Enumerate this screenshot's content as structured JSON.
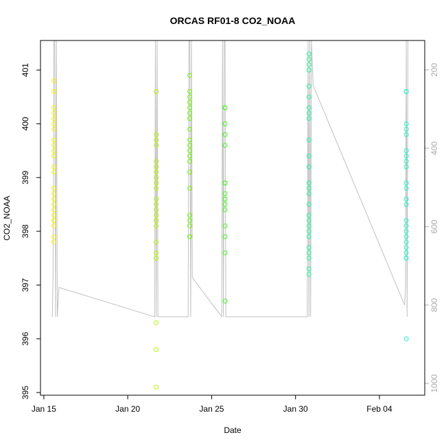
{
  "chart_data": {
    "type": "scatter",
    "title": "ORCAS RF01-8 CO2_NOAA",
    "xlabel": "Date",
    "ylabel": "CO2_NOAA",
    "x_tick_labels": [
      "Jan 15",
      "Jan 20",
      "Jan 25",
      "Jan 30",
      "Feb 04"
    ],
    "x_tick_values": [
      15,
      20,
      25,
      30,
      35
    ],
    "xlim": [
      14.8,
      37.7
    ],
    "ylim": [
      394.95,
      401.55
    ],
    "y_ticks": [
      395,
      396,
      397,
      398,
      399,
      400,
      401
    ],
    "y2_ticks": [
      200,
      400,
      600,
      800,
      1000
    ],
    "y2lim": [
      1030,
      125
    ],
    "grid": false,
    "colors": {
      "flight_palette": [
        "#f5f500",
        "#b5f500",
        "#6ef500",
        "#3ef51a",
        "#26f59a",
        "#1ff5c8"
      ],
      "secondary_line": "#c0c0c0",
      "secondary_axis": "#aaaaaa"
    },
    "series": [
      {
        "color": "#f5f500",
        "x": [
          15.6,
          15.6,
          15.6,
          15.6,
          15.6,
          15.6,
          15.6,
          15.6,
          15.6,
          15.6,
          15.6,
          15.6,
          15.6,
          15.6,
          15.6,
          15.6,
          15.6,
          15.6,
          15.6,
          15.6,
          15.6,
          15.6,
          15.6,
          15.6
        ],
        "y": [
          400.8,
          400.6,
          400.3,
          400.2,
          400.1,
          400.0,
          399.9,
          399.7,
          399.6,
          399.5,
          399.2,
          399.1,
          398.8,
          398.7,
          398.6,
          398.5,
          398.4,
          398.3,
          398.2,
          398.2,
          398.1,
          397.9,
          397.8,
          399.4
        ]
      },
      {
        "color": "#b5f500",
        "x": [
          21.7,
          21.7,
          21.7,
          21.7,
          21.7,
          21.7,
          21.7,
          21.7,
          21.7,
          21.7,
          21.7,
          21.7,
          21.7,
          21.7,
          21.7,
          21.7,
          21.7,
          21.7,
          21.7,
          21.7,
          21.7,
          21.7,
          21.7,
          21.7
        ],
        "y": [
          400.6,
          399.8,
          399.7,
          399.6,
          399.3,
          399.2,
          399.1,
          399.0,
          398.9,
          398.8,
          398.6,
          398.5,
          398.4,
          398.3,
          398.2,
          398.2,
          398.1,
          397.8,
          397.6,
          397.5,
          397.5,
          396.3,
          395.8,
          395.1
        ]
      },
      {
        "color": "#6ef500",
        "x": [
          23.7,
          23.7,
          23.7,
          23.7,
          23.7,
          23.7,
          23.7,
          23.7,
          23.7,
          23.7,
          23.7,
          23.7,
          23.7,
          23.7,
          23.7,
          23.7,
          23.7,
          23.7,
          23.7,
          23.7
        ],
        "y": [
          400.9,
          400.6,
          400.5,
          400.4,
          400.3,
          400.2,
          400.1,
          399.9,
          399.7,
          399.6,
          399.5,
          399.4,
          399.3,
          399.1,
          398.8,
          398.3,
          398.2,
          398.1,
          397.9,
          397.9
        ]
      },
      {
        "color": "#3ef51a",
        "x": [
          25.8,
          25.8,
          25.8,
          25.8,
          25.8,
          25.8,
          25.8,
          25.8,
          25.8,
          25.8,
          25.8,
          25.8,
          25.8,
          25.8,
          25.8
        ],
        "y": [
          400.3,
          400.3,
          400.0,
          399.8,
          399.6,
          398.9,
          398.9,
          398.7,
          398.6,
          398.5,
          398.4,
          398.1,
          397.9,
          397.6,
          396.7
        ]
      },
      {
        "color": "#26f59a",
        "x": [
          30.8,
          30.8,
          30.8,
          30.8,
          30.8,
          30.8,
          30.8,
          30.8,
          30.8,
          30.8,
          30.8,
          30.8,
          30.8,
          30.8,
          30.8,
          30.8,
          30.8,
          30.8,
          30.8,
          30.8,
          30.8,
          30.8,
          30.8,
          30.8,
          30.8,
          30.8
        ],
        "y": [
          401.3,
          401.2,
          401.1,
          401.0,
          400.7,
          400.5,
          400.3,
          400.2,
          400.1,
          399.7,
          399.4,
          399.2,
          398.9,
          398.8,
          398.7,
          398.5,
          398.3,
          398.2,
          398.1,
          398.0,
          397.9,
          397.7,
          397.6,
          397.5,
          397.3,
          397.2
        ]
      },
      {
        "color": "#1ff5c8",
        "x": [
          36.6,
          36.6,
          36.6,
          36.6,
          36.6,
          36.6,
          36.6,
          36.6,
          36.6,
          36.6,
          36.6,
          36.6,
          36.6,
          36.6,
          36.6,
          36.6,
          36.6,
          36.6,
          36.6,
          36.6,
          36.6,
          36.6,
          36.6,
          36.6
        ],
        "y": [
          400.6,
          400.6,
          400.6,
          400.0,
          399.9,
          399.8,
          399.5,
          399.4,
          399.3,
          399.2,
          398.9,
          398.8,
          398.6,
          398.5,
          398.2,
          398.1,
          398.0,
          397.9,
          397.8,
          397.6,
          397.5,
          397.5,
          397.7,
          396.0
        ]
      }
    ],
    "secondary_series": {
      "axis": "right",
      "x": [
        15.5,
        15.55,
        15.6,
        15.65,
        15.7,
        15.75,
        15.8,
        15.9,
        21.6,
        21.65,
        21.7,
        21.75,
        21.8,
        21.85,
        21.9,
        23.6,
        23.65,
        23.7,
        23.75,
        23.8,
        23.85,
        25.6,
        25.65,
        25.7,
        25.75,
        25.8,
        25.85,
        30.7,
        30.75,
        30.8,
        30.85,
        30.9,
        30.95,
        31.05,
        36.5,
        36.55,
        36.6,
        36.65,
        36.7,
        36.75
      ],
      "y": [
        830,
        740,
        125,
        125,
        830,
        125,
        830,
        755,
        830,
        125,
        830,
        125,
        830,
        830,
        830,
        830,
        125,
        125,
        830,
        125,
        730,
        830,
        125,
        830,
        125,
        125,
        830,
        830,
        125,
        830,
        125,
        830,
        125,
        240,
        800,
        760,
        125,
        830,
        125,
        125
      ]
    }
  }
}
